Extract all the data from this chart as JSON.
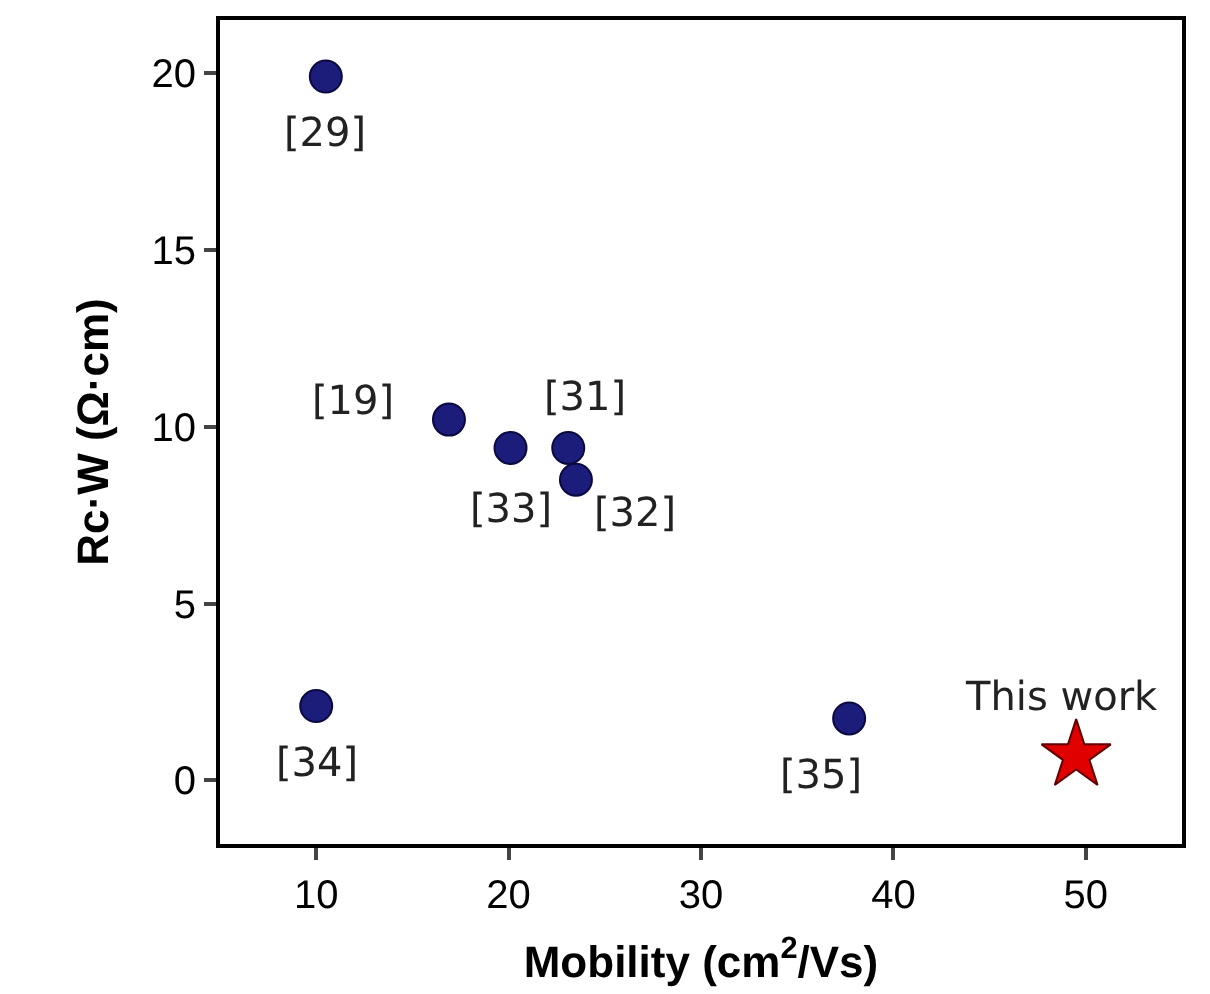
{
  "chart_data": {
    "type": "scatter",
    "xlabel": "Mobility (cm$^{2}$/Vs)",
    "ylabel": "Rc·W (Ω·cm)",
    "xlim": [
      5,
      55
    ],
    "ylim": [
      -1.8,
      21.5
    ],
    "xticks": [
      10,
      20,
      30,
      40,
      50
    ],
    "yticks": [
      0,
      5,
      10,
      15,
      20
    ],
    "series": [
      {
        "color": "#1c1c7a",
        "marker": "circle",
        "x": [
          10.5,
          16.9,
          20.1,
          23.1,
          23.5,
          10,
          37.7
        ],
        "values": [
          19.9,
          10.2,
          9.4,
          9.4,
          8.5,
          2.1,
          1.75
        ]
      },
      {
        "color": "#e00000",
        "marker": "star",
        "x": [
          49.5
        ],
        "values": [
          0.7
        ]
      }
    ],
    "annotations": [
      {
        "text": "[29]",
        "x": 10.5,
        "y": 19.9
      },
      {
        "text": "[19]",
        "x": 16.9,
        "y": 10.2
      },
      {
        "text": "[33]",
        "x": 20.1,
        "y": 9.4
      },
      {
        "text": "[31]",
        "x": 23.1,
        "y": 9.4
      },
      {
        "text": "[32]",
        "x": 23.5,
        "y": 8.5
      },
      {
        "text": "[34]",
        "x": 10,
        "y": 2.1
      },
      {
        "text": "[35]",
        "x": 37.7,
        "y": 1.75
      },
      {
        "text": "This work",
        "x": 49.5,
        "y": 0.7
      }
    ]
  }
}
